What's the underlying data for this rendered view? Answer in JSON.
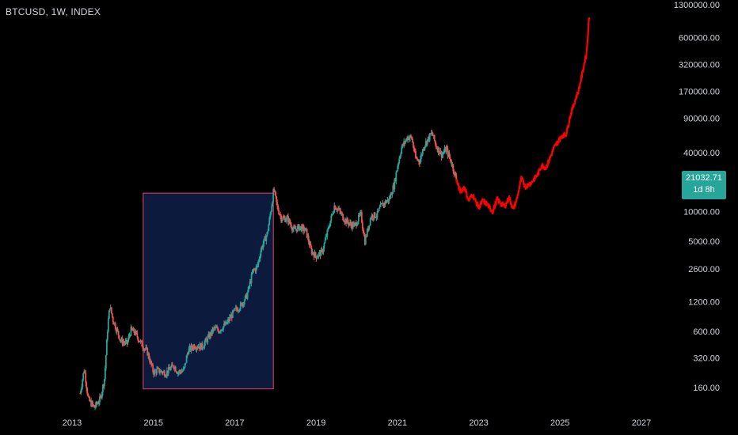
{
  "header": {
    "title": "BTCUSD, 1W, INDEX"
  },
  "price_badge": {
    "price": "21032.71",
    "countdown": "1d 8h",
    "color": "#26a69a"
  },
  "colors": {
    "background": "#000000",
    "up": "#26a69a",
    "down": "#ef5350",
    "projection": "#ff0000",
    "box_fill": "#0c1a3d",
    "box_border": "#e0456a",
    "text": "#d1d4dc"
  },
  "chart_data": {
    "type": "line",
    "title": "BTCUSD, 1W, INDEX",
    "xlabel": "",
    "ylabel": "",
    "y_scale": "log",
    "x_ticks": [
      "2013",
      "2015",
      "2017",
      "2019",
      "2021",
      "2023",
      "2025",
      "2027"
    ],
    "y_ticks": [
      "1300000.00",
      "600000.00",
      "320000.00",
      "170000.00",
      "90000.00",
      "40000.00",
      "10000.00",
      "5000.00",
      "2600.00",
      "1200.00",
      "600.00",
      "320.00",
      "160.00"
    ],
    "xlim": [
      2013.0,
      2027.5
    ],
    "ylim": [
      120,
      1300000
    ],
    "series": [
      {
        "style": "candles",
        "points": [
          [
            2013.2,
            140
          ],
          [
            2013.3,
            250
          ],
          [
            2013.4,
            120
          ],
          [
            2013.55,
            100
          ],
          [
            2013.7,
            125
          ],
          [
            2013.8,
            200
          ],
          [
            2013.88,
            700
          ],
          [
            2013.93,
            1100
          ],
          [
            2014.0,
            800
          ],
          [
            2014.1,
            620
          ],
          [
            2014.2,
            480
          ],
          [
            2014.35,
            450
          ],
          [
            2014.45,
            620
          ],
          [
            2014.55,
            580
          ],
          [
            2014.7,
            450
          ],
          [
            2014.85,
            370
          ],
          [
            2015.0,
            230
          ],
          [
            2015.1,
            240
          ],
          [
            2015.3,
            225
          ],
          [
            2015.5,
            270
          ],
          [
            2015.6,
            230
          ],
          [
            2015.75,
            240
          ],
          [
            2015.85,
            380
          ],
          [
            2016.0,
            430
          ],
          [
            2016.2,
            420
          ],
          [
            2016.4,
            560
          ],
          [
            2016.5,
            650
          ],
          [
            2016.6,
            610
          ],
          [
            2016.8,
            720
          ],
          [
            2017.0,
            980
          ],
          [
            2017.15,
            1100
          ],
          [
            2017.3,
            1400
          ],
          [
            2017.45,
            2500
          ],
          [
            2017.55,
            2700
          ],
          [
            2017.65,
            4200
          ],
          [
            2017.8,
            6000
          ],
          [
            2017.9,
            11000
          ],
          [
            2017.96,
            17000
          ],
          [
            2018.05,
            11000
          ],
          [
            2018.15,
            8500
          ],
          [
            2018.3,
            8500
          ],
          [
            2018.45,
            6500
          ],
          [
            2018.6,
            7000
          ],
          [
            2018.75,
            6400
          ],
          [
            2018.88,
            4000
          ],
          [
            2019.0,
            3500
          ],
          [
            2019.15,
            3900
          ],
          [
            2019.35,
            8000
          ],
          [
            2019.45,
            11500
          ],
          [
            2019.55,
            10500
          ],
          [
            2019.7,
            8300
          ],
          [
            2019.85,
            7400
          ],
          [
            2019.95,
            7200
          ],
          [
            2020.1,
            9500
          ],
          [
            2020.2,
            5000
          ],
          [
            2020.35,
            9000
          ],
          [
            2020.5,
            9300
          ],
          [
            2020.6,
            11500
          ],
          [
            2020.8,
            13500
          ],
          [
            2020.92,
            19000
          ],
          [
            2021.0,
            29000
          ],
          [
            2021.1,
            45000
          ],
          [
            2021.25,
            58000
          ],
          [
            2021.35,
            57000
          ],
          [
            2021.45,
            35000
          ],
          [
            2021.55,
            33000
          ],
          [
            2021.65,
            47000
          ],
          [
            2021.75,
            55000
          ],
          [
            2021.85,
            64000
          ],
          [
            2021.95,
            47000
          ],
          [
            2022.1,
            38000
          ],
          [
            2022.2,
            44000
          ],
          [
            2022.35,
            30000
          ],
          [
            2022.45,
            21032.71
          ]
        ]
      },
      {
        "style": "line",
        "name": "",
        "points": [
          [
            2022.45,
            21000
          ],
          [
            2022.55,
            16000
          ],
          [
            2022.65,
            18000
          ],
          [
            2022.75,
            13000
          ],
          [
            2022.85,
            15000
          ],
          [
            2023.0,
            11000
          ],
          [
            2023.1,
            13000
          ],
          [
            2023.2,
            12000
          ],
          [
            2023.35,
            10000
          ],
          [
            2023.45,
            13500
          ],
          [
            2023.55,
            12000
          ],
          [
            2023.65,
            11500
          ],
          [
            2023.75,
            14000
          ],
          [
            2023.85,
            10500
          ],
          [
            2023.95,
            14000
          ],
          [
            2024.05,
            22000
          ],
          [
            2024.15,
            18000
          ],
          [
            2024.3,
            20000
          ],
          [
            2024.45,
            24000
          ],
          [
            2024.55,
            30000
          ],
          [
            2024.65,
            28000
          ],
          [
            2024.75,
            35000
          ],
          [
            2024.85,
            45000
          ],
          [
            2024.95,
            52000
          ],
          [
            2025.05,
            60000
          ],
          [
            2025.15,
            62000
          ],
          [
            2025.25,
            95000
          ],
          [
            2025.35,
            130000
          ],
          [
            2025.45,
            170000
          ],
          [
            2025.55,
            260000
          ],
          [
            2025.65,
            420000
          ],
          [
            2025.72,
            1000000
          ]
        ]
      }
    ],
    "annotations": [
      {
        "type": "rectangle",
        "x_range": [
          2014.75,
          2017.95
        ],
        "y_range": [
          155,
          15500
        ]
      }
    ]
  }
}
